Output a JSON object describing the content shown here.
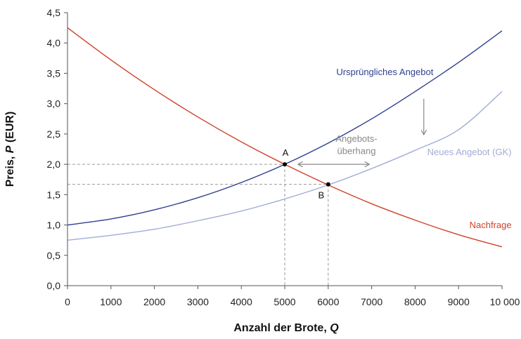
{
  "chart_data": {
    "type": "line",
    "title": "",
    "xlabel": "Anzahl der Brote, ",
    "xlabel_var": "Q",
    "ylabel": "Preis, ",
    "ylabel_var": "P",
    "ylabel_unit": " (EUR)",
    "xlim": [
      0,
      10000
    ],
    "ylim": [
      0,
      4.5
    ],
    "x_ticks": [
      0,
      1000,
      2000,
      3000,
      4000,
      5000,
      6000,
      7000,
      8000,
      9000,
      10000
    ],
    "x_tick_labels": [
      "0",
      "1000",
      "2000",
      "3000",
      "4000",
      "5000",
      "6000",
      "7000",
      "8000",
      "9000",
      "10 000"
    ],
    "y_ticks": [
      0,
      0.5,
      1,
      1.5,
      2,
      2.5,
      3,
      3.5,
      4,
      4.5
    ],
    "y_tick_labels": [
      "0,0",
      "0,5",
      "1,0",
      "1,5",
      "2,0",
      "2,5",
      "3,0",
      "3,5",
      "4,0",
      "4,5"
    ],
    "grid": false,
    "series": [
      {
        "name": "Nachfrage",
        "color": "#d2402a",
        "x": [
          0,
          1000,
          2000,
          3000,
          4000,
          5000,
          6000,
          7000,
          8000,
          9000,
          10000
        ],
        "y": [
          4.25,
          3.72,
          3.23,
          2.78,
          2.37,
          2.0,
          1.66,
          1.35,
          1.08,
          0.84,
          0.64
        ]
      },
      {
        "name": "Ursprüngliches Angebot",
        "color": "#2e3f8f",
        "x": [
          0,
          1000,
          2000,
          3000,
          4000,
          5000,
          6000,
          7000,
          8000,
          9000,
          10000
        ],
        "y": [
          1.0,
          1.1,
          1.25,
          1.45,
          1.7,
          2.0,
          2.35,
          2.75,
          3.2,
          3.68,
          4.2
        ]
      },
      {
        "name": "Neues Angebot (GK)",
        "color": "#a2acd6",
        "x": [
          0,
          1000,
          2000,
          3000,
          4000,
          5000,
          6000,
          7000,
          8000,
          9000,
          10000
        ],
        "y": [
          0.75,
          0.83,
          0.93,
          1.07,
          1.23,
          1.43,
          1.66,
          1.93,
          2.23,
          2.57,
          3.2
        ]
      }
    ],
    "points": [
      {
        "label": "A",
        "x": 5000,
        "y": 2.0
      },
      {
        "label": "B",
        "x": 6000,
        "y": 1.67
      }
    ],
    "annotations": {
      "surplus_line1": "Angebots-",
      "surplus_line2": "überhang"
    },
    "colors": {
      "axis": "#555555",
      "guide": "#999999",
      "annotation": "#888888"
    }
  }
}
